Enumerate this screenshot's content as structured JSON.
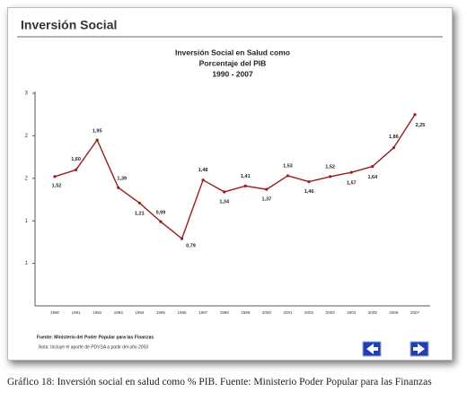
{
  "header": "Inversión Social",
  "chart_data": {
    "type": "line",
    "title": [
      "Inversión Social en Salud como",
      "Porcentaje del PIB",
      "1990 - 2007"
    ],
    "categories": [
      "1990",
      "1991",
      "1992",
      "1993",
      "1994",
      "1995",
      "1996",
      "1997",
      "1998",
      "1999",
      "2000",
      "2001",
      "2002",
      "2003",
      "2004",
      "2005",
      "2006",
      "2007"
    ],
    "series": [
      {
        "color": "#9b1c1c",
        "values": [
          1.52,
          1.6,
          1.95,
          1.39,
          1.21,
          0.99,
          0.79,
          1.48,
          1.34,
          1.41,
          1.37,
          1.53,
          1.46,
          1.52,
          1.57,
          1.64,
          1.86,
          2.25
        ],
        "value_labels": [
          "1,52",
          "1,60",
          "1,95",
          "1,39",
          "1,21",
          "0,99",
          "0,79",
          "1,48",
          "1,34",
          "1,41",
          "1,37",
          "1,53",
          "1,46",
          "1,52",
          "1,57",
          "1,64",
          "1,86",
          "2,25"
        ]
      }
    ],
    "ylim": [
      0,
      2.5
    ],
    "yticks": [
      {
        "value": 0.5,
        "label": "1"
      },
      1,
      {
        "value": 1.5,
        "label": "2"
      },
      2,
      {
        "value": 2.5,
        "label": "3"
      }
    ]
  },
  "source": "Fuente: Ministerio del Poder Popular para las Finanzas",
  "note": "Nota: Incluye el aporte de PDVSA a partir del año 2003",
  "caption": "Gráfico 18: Inversión social en salud como % PIB. Fuente: Ministerio Poder Popular para las Finanzas"
}
